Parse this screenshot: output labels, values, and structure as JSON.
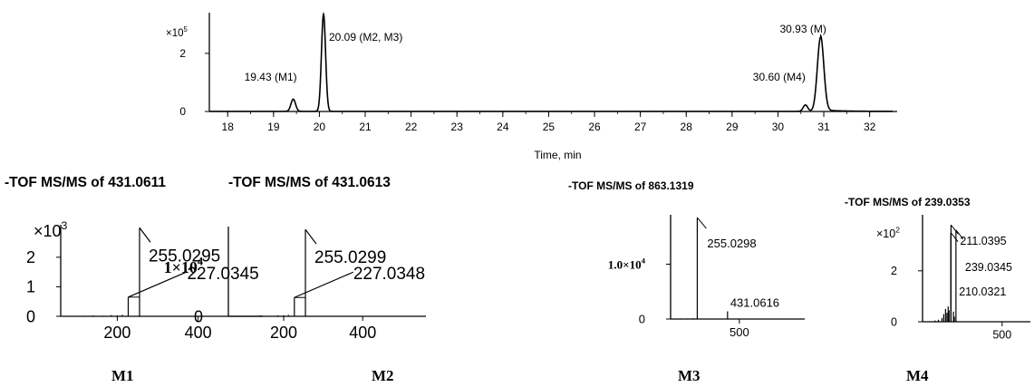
{
  "chart_data": [
    {
      "type": "line",
      "id": "chromatogram",
      "xlabel": "Time, min",
      "x_ticks": [
        18,
        19,
        20,
        21,
        22,
        23,
        24,
        25,
        26,
        27,
        28,
        29,
        30,
        31,
        32
      ],
      "xlim": [
        17.6,
        32.6
      ],
      "ylim": [
        0,
        3.4
      ],
      "y_ticks": [
        0,
        2
      ],
      "y_multiplier": {
        "base": "×10",
        "exp": "5"
      },
      "line_color": "#000000",
      "peaks": [
        {
          "rt": 19.43,
          "height": 0.42,
          "width": 0.05,
          "label": "19.43 (M1)"
        },
        {
          "rt": 20.09,
          "height": 3.35,
          "width": 0.045,
          "label": "20.09 (M2, M3)"
        },
        {
          "rt": 30.6,
          "height": 0.22,
          "width": 0.05,
          "label": "30.60 (M4)"
        },
        {
          "rt": 30.93,
          "height": 2.55,
          "width": 0.07,
          "label": "30.93 (M)"
        }
      ]
    },
    {
      "type": "bar",
      "id": "M1",
      "title": "-TOF MS/MS of 431.0611",
      "caption": "M1",
      "x_ticks": [
        200,
        400
      ],
      "xlim": [
        60,
        560
      ],
      "ylim": [
        0,
        3.1
      ],
      "y_ticks": [
        0,
        1,
        2
      ],
      "y_multiplier": {
        "base": "×10",
        "exp": "3"
      },
      "bars": [
        {
          "x": 255.0295,
          "y": 3.0,
          "label": "255.0295"
        },
        {
          "x": 227.0345,
          "y": 0.65,
          "label": "227.0345"
        },
        {
          "x": 120,
          "y": 0.02
        },
        {
          "x": 140,
          "y": 0.03
        },
        {
          "x": 165,
          "y": 0.02
        },
        {
          "x": 185,
          "y": 0.04
        },
        {
          "x": 200,
          "y": 0.03
        },
        {
          "x": 212,
          "y": 0.05
        }
      ]
    },
    {
      "type": "bar",
      "id": "M2",
      "title": "-TOF MS/MS of 431.0613",
      "caption": "M2",
      "x_ticks": [
        200,
        400
      ],
      "xlim": [
        60,
        560
      ],
      "ylim": [
        0,
        1.86
      ],
      "y_ticks": [
        0,
        1
      ],
      "y_tick_labels": [
        {
          "value": 1,
          "base": "1×10",
          "exp": "4"
        }
      ],
      "bars": [
        {
          "x": 255.0299,
          "y": 1.8,
          "label": "255.0299"
        },
        {
          "x": 227.0348,
          "y": 0.39,
          "label": "227.0348"
        },
        {
          "x": 120,
          "y": 0.01
        },
        {
          "x": 140,
          "y": 0.02
        },
        {
          "x": 165,
          "y": 0.01
        },
        {
          "x": 185,
          "y": 0.02
        },
        {
          "x": 200,
          "y": 0.02
        },
        {
          "x": 212,
          "y": 0.03
        }
      ]
    },
    {
      "type": "bar",
      "id": "M3",
      "title": "-TOF MS/MS of 863.1319",
      "caption": "M3",
      "x_ticks": [
        500
      ],
      "xlim": [
        100,
        880
      ],
      "ylim": [
        0,
        1.9
      ],
      "y_ticks": [
        0,
        1
      ],
      "y_tick_labels": [
        {
          "value": 1,
          "base": "1.0×10",
          "exp": "4"
        }
      ],
      "bars": [
        {
          "x": 255.0298,
          "y": 1.85,
          "label": "255.0298"
        },
        {
          "x": 431.0616,
          "y": 0.14,
          "label": "431.0616"
        },
        {
          "x": 160,
          "y": 0.01
        },
        {
          "x": 195,
          "y": 0.01
        },
        {
          "x": 230,
          "y": 0.015
        }
      ]
    },
    {
      "type": "bar",
      "id": "M4",
      "title": "-TOF MS/MS of 239.0353",
      "caption": "M4",
      "x_ticks": [
        500
      ],
      "xlim": [
        50,
        660
      ],
      "ylim": [
        0,
        4.2
      ],
      "y_ticks": [
        0,
        2
      ],
      "y_multiplier": {
        "base": "×10",
        "exp": "2"
      },
      "bars": [
        {
          "x": 211.0395,
          "y": 3.8,
          "label": "211.0395"
        },
        {
          "x": 239.0345,
          "y": 3.6,
          "label": "239.0345"
        },
        {
          "x": 210.0321,
          "y": 3.5,
          "label": "210.0321"
        },
        {
          "x": 120,
          "y": 0.05
        },
        {
          "x": 140,
          "y": 0.08
        },
        {
          "x": 160,
          "y": 0.15
        },
        {
          "x": 170,
          "y": 0.3
        },
        {
          "x": 180,
          "y": 0.5
        },
        {
          "x": 188,
          "y": 0.35
        },
        {
          "x": 195,
          "y": 0.6
        },
        {
          "x": 200,
          "y": 0.45
        },
        {
          "x": 225,
          "y": 0.4
        },
        {
          "x": 230,
          "y": 0.2
        }
      ]
    }
  ]
}
